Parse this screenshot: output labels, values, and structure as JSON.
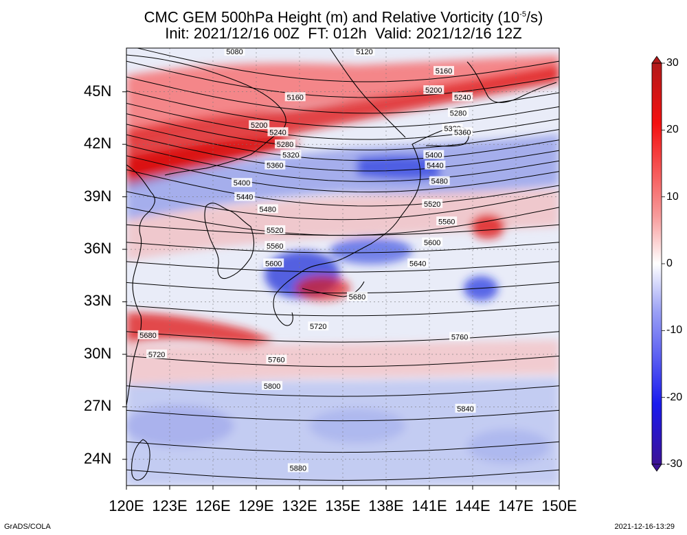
{
  "title": {
    "line1": "CMC GEM 500hPa Height (m) and Relative Vorticity (10",
    "line1_sup": "-5",
    "line1_end": "/s)",
    "line2": "Init: 2021/12/16 00Z  FT: 012h  Valid: 2021/12/16 12Z"
  },
  "axes": {
    "lat_labels": [
      "45N",
      "42N",
      "39N",
      "36N",
      "33N",
      "30N",
      "27N",
      "24N"
    ],
    "lon_labels": [
      "120E",
      "123E",
      "126E",
      "129E",
      "132E",
      "135E",
      "138E",
      "141E",
      "144E",
      "147E",
      "150E"
    ],
    "lat_values": [
      45,
      42,
      39,
      36,
      33,
      30,
      27,
      24
    ],
    "lon_values": [
      120,
      123,
      126,
      129,
      132,
      135,
      138,
      141,
      144,
      147,
      150
    ],
    "lon_range": [
      120,
      150
    ],
    "lat_range": [
      22.5,
      47.5
    ]
  },
  "colorbar": {
    "labels": [
      "30",
      "20",
      "10",
      "0",
      "-10",
      "-20",
      "-30"
    ],
    "values": [
      30,
      20,
      10,
      0,
      -10,
      -20,
      -30
    ],
    "colors": {
      "max": "#b21a1a",
      "pos_high": "#f41010",
      "pos_mid": "#f79a9a",
      "zero": "#ffffff",
      "neg_mid": "#9aa0f5",
      "neg_high": "#1a1aee",
      "min": "#3c1296"
    }
  },
  "contours": {
    "color": "#000000",
    "labels": [
      {
        "text": "5080",
        "lon": 127.5,
        "lat": 47.3
      },
      {
        "text": "5120",
        "lon": 136.5,
        "lat": 47.3
      },
      {
        "text": "5160",
        "lon": 142.0,
        "lat": 46.2
      },
      {
        "text": "5200",
        "lon": 141.3,
        "lat": 45.1
      },
      {
        "text": "5240",
        "lon": 143.3,
        "lat": 44.7
      },
      {
        "text": "5280",
        "lon": 143.0,
        "lat": 43.8
      },
      {
        "text": "5320",
        "lon": 142.6,
        "lat": 42.9
      },
      {
        "text": "5360",
        "lon": 143.3,
        "lat": 42.7
      },
      {
        "text": "5160",
        "lon": 131.7,
        "lat": 44.7
      },
      {
        "text": "5200",
        "lon": 129.2,
        "lat": 43.1
      },
      {
        "text": "5240",
        "lon": 130.5,
        "lat": 42.7
      },
      {
        "text": "5280",
        "lon": 131.0,
        "lat": 42.0
      },
      {
        "text": "5320",
        "lon": 131.4,
        "lat": 41.4
      },
      {
        "text": "5360",
        "lon": 130.3,
        "lat": 40.8
      },
      {
        "text": "5400",
        "lon": 128.0,
        "lat": 39.8
      },
      {
        "text": "5440",
        "lon": 128.2,
        "lat": 39.0
      },
      {
        "text": "5480",
        "lon": 129.8,
        "lat": 38.3
      },
      {
        "text": "5520",
        "lon": 130.3,
        "lat": 37.1
      },
      {
        "text": "5560",
        "lon": 130.3,
        "lat": 36.2
      },
      {
        "text": "5600",
        "lon": 130.2,
        "lat": 35.2
      },
      {
        "text": "5400",
        "lon": 141.3,
        "lat": 41.4
      },
      {
        "text": "5440",
        "lon": 141.4,
        "lat": 40.8
      },
      {
        "text": "5480",
        "lon": 141.7,
        "lat": 39.9
      },
      {
        "text": "5520",
        "lon": 141.2,
        "lat": 38.6
      },
      {
        "text": "5560",
        "lon": 142.2,
        "lat": 37.6
      },
      {
        "text": "5600",
        "lon": 141.2,
        "lat": 36.4
      },
      {
        "text": "5640",
        "lon": 140.2,
        "lat": 35.2
      },
      {
        "text": "5680",
        "lon": 136.0,
        "lat": 33.3
      },
      {
        "text": "5720",
        "lon": 133.3,
        "lat": 31.6
      },
      {
        "text": "5680",
        "lon": 121.5,
        "lat": 31.1
      },
      {
        "text": "5720",
        "lon": 122.1,
        "lat": 30.0
      },
      {
        "text": "5760",
        "lon": 143.1,
        "lat": 31.0
      },
      {
        "text": "5760",
        "lon": 130.4,
        "lat": 29.7
      },
      {
        "text": "5800",
        "lon": 130.1,
        "lat": 28.2
      },
      {
        "text": "5840",
        "lon": 143.5,
        "lat": 26.9
      },
      {
        "text": "5880",
        "lon": 131.9,
        "lat": 23.5
      }
    ]
  },
  "footer": {
    "left": "GrADS/COLA",
    "right": "2021-12-16-13:29"
  }
}
